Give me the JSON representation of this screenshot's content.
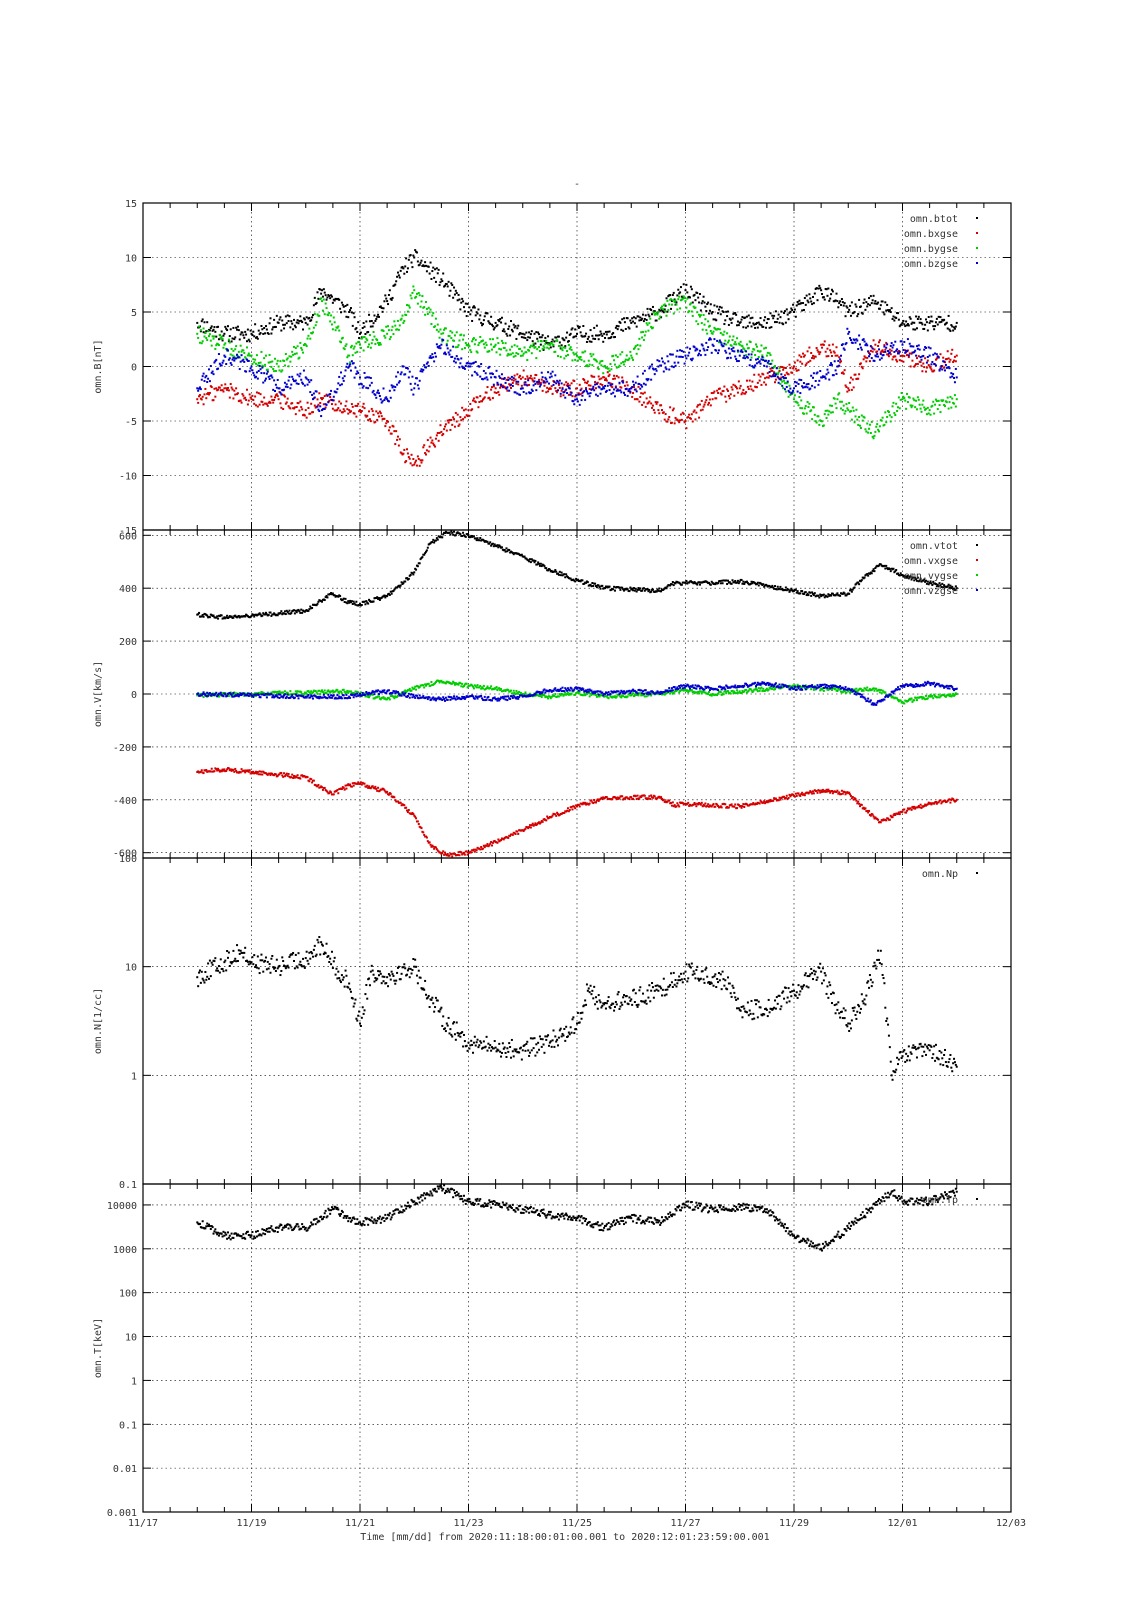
{
  "title": "-",
  "x_axis": {
    "ticks": [
      "11/17",
      "11/19",
      "11/21",
      "11/23",
      "11/25",
      "11/27",
      "11/29",
      "12/01",
      "12/03"
    ],
    "label": "Time [mm/dd]  from 2020:11:18:00:01:00.001  to  2020:12:01:23:59:00.001"
  },
  "colors": {
    "black": "#000000",
    "red": "#d40000",
    "green": "#00cc00",
    "blue": "#0000cc"
  },
  "chart_data": [
    {
      "type": "scatter",
      "ylabel": "omn.B[nT]",
      "ylim": [
        -15,
        15
      ],
      "yticks": [
        "15",
        "10",
        "5",
        "0",
        "-5",
        "-10",
        "-15"
      ],
      "legend_position": "top-right",
      "series": [
        {
          "name": "omn.btot",
          "color": "black",
          "x": [
            18.0,
            18.5,
            19.0,
            19.5,
            20.0,
            20.3,
            20.8,
            21.0,
            21.5,
            21.8,
            22.0,
            22.5,
            23.0,
            23.5,
            24.0,
            24.5,
            25.0,
            25.5,
            26.0,
            26.5,
            27.0,
            27.5,
            28.0,
            28.5,
            29.0,
            29.5,
            29.8,
            30.0,
            30.5,
            31.0,
            31.5,
            32.0
          ],
          "y": [
            4,
            3,
            3,
            4,
            4,
            7,
            5,
            3,
            6,
            9,
            10,
            8,
            5,
            4,
            3,
            2,
            3,
            3,
            4,
            5,
            7,
            5,
            4,
            4,
            5,
            7,
            6,
            5,
            6,
            4,
            4,
            4
          ]
        },
        {
          "name": "omn.bxgse",
          "color": "red",
          "x": [
            18.0,
            18.5,
            19.0,
            19.5,
            20.0,
            20.3,
            20.8,
            21.0,
            21.5,
            21.8,
            22.0,
            22.5,
            23.0,
            23.5,
            24.0,
            24.5,
            25.0,
            25.5,
            26.0,
            26.5,
            27.0,
            27.5,
            28.0,
            28.5,
            29.0,
            29.5,
            29.8,
            30.0,
            30.5,
            31.0,
            31.5,
            32.0
          ],
          "y": [
            -3,
            -2,
            -3,
            -3,
            -4,
            -3,
            -4,
            -4,
            -5,
            -8,
            -9,
            -6,
            -4,
            -2,
            -1,
            -2,
            -2,
            -1,
            -2,
            -4,
            -5,
            -3,
            -2,
            -1,
            0,
            2,
            1,
            -2,
            2,
            1,
            0,
            1
          ]
        },
        {
          "name": "omn.bygse",
          "color": "green",
          "x": [
            18.0,
            18.5,
            19.0,
            19.5,
            20.0,
            20.3,
            20.8,
            21.0,
            21.5,
            21.8,
            22.0,
            22.5,
            23.0,
            23.5,
            24.0,
            24.5,
            25.0,
            25.5,
            26.0,
            26.5,
            27.0,
            27.5,
            28.0,
            28.5,
            29.0,
            29.5,
            29.8,
            30.0,
            30.5,
            31.0,
            31.5,
            32.0
          ],
          "y": [
            3,
            2,
            1,
            0,
            2,
            6,
            1,
            2,
            3,
            4,
            7,
            3,
            2,
            2,
            1,
            2,
            1,
            0,
            1,
            5,
            6,
            3,
            2,
            1,
            -3,
            -5,
            -3,
            -4,
            -6,
            -3,
            -4,
            -3
          ]
        },
        {
          "name": "omn.bzgse",
          "color": "blue",
          "x": [
            18.0,
            18.5,
            19.0,
            19.5,
            20.0,
            20.3,
            20.8,
            21.0,
            21.5,
            21.8,
            22.0,
            22.5,
            23.0,
            23.5,
            24.0,
            24.5,
            25.0,
            25.5,
            26.0,
            26.5,
            27.0,
            27.5,
            28.0,
            28.5,
            29.0,
            29.5,
            29.8,
            30.0,
            30.5,
            31.0,
            31.5,
            32.0
          ],
          "y": [
            -2,
            1,
            0,
            -2,
            -1,
            -4,
            0,
            -1,
            -3,
            0,
            -2,
            2,
            0,
            -1,
            -2,
            -1,
            -3,
            -2,
            -2,
            0,
            1,
            2,
            1,
            0,
            -2,
            -1,
            0,
            3,
            1,
            2,
            1,
            -1
          ]
        }
      ]
    },
    {
      "type": "scatter",
      "ylabel": "omn.V[km/s]",
      "ylim": [
        -620,
        620
      ],
      "yticks": [
        "600",
        "400",
        "200",
        "0",
        "-200",
        "-400",
        "-600"
      ],
      "legend_position": "top-right",
      "series": [
        {
          "name": "omn.vtot",
          "color": "black",
          "x": [
            18.0,
            18.5,
            19.0,
            19.5,
            20.0,
            20.5,
            20.8,
            21.0,
            21.5,
            22.0,
            22.3,
            22.6,
            23.0,
            23.5,
            24.0,
            24.5,
            25.0,
            25.5,
            26.0,
            26.5,
            26.8,
            27.0,
            27.5,
            28.0,
            28.5,
            29.0,
            29.5,
            30.0,
            30.3,
            30.6,
            31.0,
            31.5,
            32.0
          ],
          "y": [
            300,
            290,
            295,
            305,
            315,
            380,
            345,
            340,
            370,
            460,
            570,
            610,
            600,
            560,
            520,
            470,
            430,
            400,
            395,
            390,
            420,
            420,
            420,
            425,
            410,
            390,
            370,
            380,
            440,
            490,
            450,
            420,
            400
          ]
        },
        {
          "name": "omn.vxgse",
          "color": "red",
          "x": [
            18.0,
            18.5,
            19.0,
            19.5,
            20.0,
            20.5,
            20.8,
            21.0,
            21.5,
            22.0,
            22.3,
            22.6,
            23.0,
            23.5,
            24.0,
            24.5,
            25.0,
            25.5,
            26.0,
            26.5,
            26.8,
            27.0,
            27.5,
            28.0,
            28.5,
            29.0,
            29.5,
            30.0,
            30.3,
            30.6,
            31.0,
            31.5,
            32.0
          ],
          "y": [
            -295,
            -285,
            -295,
            -305,
            -315,
            -380,
            -345,
            -340,
            -370,
            -460,
            -570,
            -610,
            -600,
            -560,
            -515,
            -465,
            -425,
            -395,
            -390,
            -390,
            -420,
            -415,
            -420,
            -425,
            -405,
            -385,
            -365,
            -375,
            -435,
            -485,
            -445,
            -415,
            -400
          ]
        },
        {
          "name": "omn.vygse",
          "color": "green",
          "x": [
            18.0,
            19.0,
            20.0,
            20.8,
            21.0,
            21.5,
            22.0,
            22.5,
            23.0,
            23.5,
            24.0,
            24.5,
            25.0,
            25.5,
            26.0,
            26.5,
            27.0,
            27.5,
            28.0,
            28.5,
            29.0,
            29.5,
            30.0,
            30.5,
            31.0,
            31.5,
            32.0
          ],
          "y": [
            -5,
            0,
            5,
            10,
            0,
            -20,
            20,
            50,
            30,
            20,
            0,
            -10,
            5,
            -10,
            -5,
            0,
            15,
            0,
            10,
            20,
            30,
            20,
            10,
            20,
            -30,
            -10,
            0
          ]
        },
        {
          "name": "omn.vzgse",
          "color": "blue",
          "x": [
            18.0,
            19.0,
            20.0,
            20.8,
            21.0,
            21.5,
            22.0,
            22.5,
            23.0,
            23.5,
            24.0,
            24.5,
            25.0,
            25.5,
            26.0,
            26.5,
            27.0,
            27.5,
            28.0,
            28.5,
            29.0,
            29.5,
            30.0,
            30.5,
            31.0,
            31.5,
            32.0
          ],
          "y": [
            0,
            -5,
            -10,
            -10,
            0,
            10,
            -10,
            -20,
            -10,
            -20,
            -10,
            15,
            20,
            0,
            10,
            5,
            30,
            20,
            30,
            40,
            20,
            30,
            20,
            -40,
            30,
            40,
            20
          ]
        }
      ]
    },
    {
      "type": "scatter",
      "ylabel": "omn.N[1/cc]",
      "ylim": [
        0.1,
        100
      ],
      "scale": "log",
      "yticks": [
        "100",
        "10",
        "1",
        "0.1"
      ],
      "legend_position": "top-right",
      "series": [
        {
          "name": "omn.Np",
          "color": "black",
          "x": [
            18.0,
            18.5,
            18.8,
            19.0,
            19.5,
            20.0,
            20.3,
            20.6,
            20.8,
            21.0,
            21.2,
            21.5,
            22.0,
            22.3,
            22.6,
            23.0,
            23.5,
            24.0,
            24.5,
            25.0,
            25.2,
            25.5,
            26.0,
            26.5,
            27.0,
            27.5,
            27.8,
            28.0,
            28.5,
            29.0,
            29.5,
            29.8,
            30.0,
            30.3,
            30.6,
            30.8,
            31.0,
            31.5,
            32.0
          ],
          "y": [
            8,
            11,
            14,
            11,
            10,
            12,
            16,
            9,
            7,
            3,
            9,
            8,
            10,
            5,
            3,
            2,
            1.8,
            1.7,
            2,
            3,
            6,
            4.5,
            5,
            6,
            9,
            8,
            7,
            4,
            4,
            6,
            9,
            4,
            3,
            5,
            14,
            1,
            1.5,
            1.7,
            1.2
          ]
        }
      ]
    },
    {
      "type": "scatter",
      "ylabel": "omn.T[keV]",
      "ylim": [
        0.001,
        30000
      ],
      "scale": "log",
      "yticks": [
        "10000",
        "1000",
        "100",
        "10",
        "1",
        "0.1",
        "0.01",
        "0.001"
      ],
      "legend_position": "top-right",
      "series": [
        {
          "name": "omn.Tp",
          "color": "black",
          "x": [
            18.0,
            18.5,
            19.0,
            19.5,
            20.0,
            20.5,
            20.8,
            21.0,
            21.5,
            22.0,
            22.5,
            23.0,
            23.5,
            24.0,
            24.5,
            25.0,
            25.5,
            26.0,
            26.5,
            27.0,
            27.5,
            28.0,
            28.5,
            29.0,
            29.5,
            30.0,
            30.5,
            30.8,
            31.0,
            31.5,
            32.0
          ],
          "y": [
            4000,
            2000,
            2000,
            3000,
            3000,
            8000,
            5000,
            4000,
            5000,
            12000,
            25000,
            12000,
            10000,
            8000,
            6000,
            5000,
            3000,
            5000,
            4000,
            10000,
            8000,
            9000,
            8000,
            2000,
            1000,
            3000,
            10000,
            20000,
            12000,
            12000,
            20000
          ]
        }
      ]
    }
  ]
}
